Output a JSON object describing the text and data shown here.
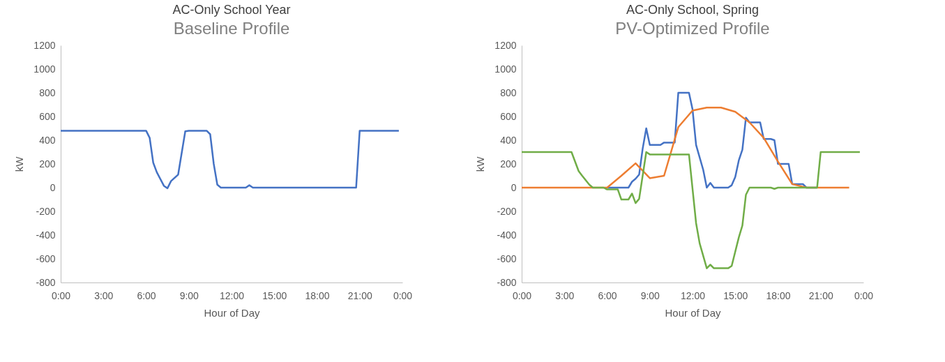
{
  "chart_data": [
    {
      "type": "line",
      "title": "AC-Only School Year",
      "subtitle": "Baseline Profile",
      "xlabel": "Hour of Day",
      "ylabel": "kW",
      "xlim": [
        0,
        24
      ],
      "ylim": [
        -800,
        1200
      ],
      "xticks": [
        {
          "value": 0,
          "label": "0:00"
        },
        {
          "value": 3,
          "label": "3:00"
        },
        {
          "value": 6,
          "label": "6:00"
        },
        {
          "value": 9,
          "label": "9:00"
        },
        {
          "value": 12,
          "label": "12:00"
        },
        {
          "value": 15,
          "label": "15:00"
        },
        {
          "value": 18,
          "label": "18:00"
        },
        {
          "value": 21,
          "label": "21:00"
        },
        {
          "value": 24,
          "label": "0:00"
        }
      ],
      "yticks": [
        -800,
        -600,
        -400,
        -200,
        0,
        200,
        400,
        600,
        800,
        1000,
        1200
      ],
      "grid": false,
      "series": [
        {
          "color": "#4472c4",
          "x": [
            0,
            6,
            6.25,
            6.5,
            6.75,
            7.25,
            7.5,
            7.75,
            8.25,
            8.75,
            9,
            10.25,
            10.5,
            10.75,
            11,
            11.25,
            13,
            13.25,
            13.5,
            20.75,
            21,
            23.75
          ],
          "values": [
            480,
            480,
            420,
            210,
            130,
            15,
            -5,
            55,
            110,
            475,
            480,
            480,
            450,
            200,
            25,
            0,
            0,
            20,
            0,
            0,
            480,
            480
          ]
        }
      ]
    },
    {
      "type": "line",
      "title": "AC-Only School, Spring",
      "subtitle": "PV-Optimized  Profile",
      "xlabel": "Hour of Day",
      "ylabel": "kW",
      "xlim": [
        0,
        24
      ],
      "ylim": [
        -800,
        1200
      ],
      "xticks": [
        {
          "value": 0,
          "label": "0:00"
        },
        {
          "value": 3,
          "label": "3:00"
        },
        {
          "value": 6,
          "label": "6:00"
        },
        {
          "value": 9,
          "label": "9:00"
        },
        {
          "value": 12,
          "label": "12:00"
        },
        {
          "value": 15,
          "label": "15:00"
        },
        {
          "value": 18,
          "label": "18:00"
        },
        {
          "value": 21,
          "label": "21:00"
        },
        {
          "value": 24,
          "label": "0:00"
        }
      ],
      "yticks": [
        -800,
        -600,
        -400,
        -200,
        0,
        200,
        400,
        600,
        800,
        1000,
        1200
      ],
      "grid": false,
      "series": [
        {
          "color": "#4472c4",
          "x": [
            6,
            7.5,
            7.75,
            8,
            8.25,
            8.5,
            8.75,
            9,
            9.75,
            10,
            10.75,
            11,
            11.75,
            12,
            12.25,
            12.75,
            13,
            13.25,
            13.5,
            14.5,
            14.75,
            15,
            15.25,
            15.5,
            15.75,
            16,
            16.75,
            17,
            17.5,
            17.75,
            18,
            18.75,
            19,
            19.75,
            20,
            20.75
          ],
          "values": [
            0,
            0,
            50,
            75,
            110,
            330,
            500,
            360,
            360,
            380,
            380,
            800,
            800,
            660,
            360,
            150,
            0,
            40,
            0,
            0,
            20,
            90,
            230,
            320,
            590,
            550,
            550,
            410,
            410,
            400,
            200,
            200,
            30,
            30,
            0,
            0
          ]
        },
        {
          "color": "#ed7d31",
          "x": [
            0,
            6,
            7,
            8,
            9,
            10,
            11,
            12,
            13,
            14,
            15,
            16,
            17,
            18,
            19,
            20,
            23
          ],
          "values": [
            0,
            0,
            100,
            205,
            80,
            100,
            510,
            650,
            675,
            675,
            640,
            550,
            420,
            220,
            30,
            0,
            0
          ]
        },
        {
          "color": "#70ad47",
          "x": [
            0,
            3.5,
            4,
            4.25,
            4.75,
            5,
            5.75,
            6,
            6.75,
            7,
            7.5,
            7.75,
            8,
            8.25,
            8.75,
            9,
            11.75,
            12.25,
            12.5,
            13,
            13.25,
            13.5,
            14.5,
            14.75,
            15.25,
            15.5,
            15.75,
            16,
            17.5,
            17.75,
            18,
            20.75,
            21,
            23.75
          ],
          "values": [
            300,
            300,
            140,
            100,
            25,
            0,
            0,
            -15,
            -15,
            -100,
            -100,
            -50,
            -130,
            -95,
            300,
            280,
            280,
            -300,
            -470,
            -680,
            -650,
            -680,
            -680,
            -660,
            -420,
            -320,
            -60,
            0,
            0,
            -10,
            0,
            0,
            300,
            300
          ]
        }
      ]
    }
  ]
}
